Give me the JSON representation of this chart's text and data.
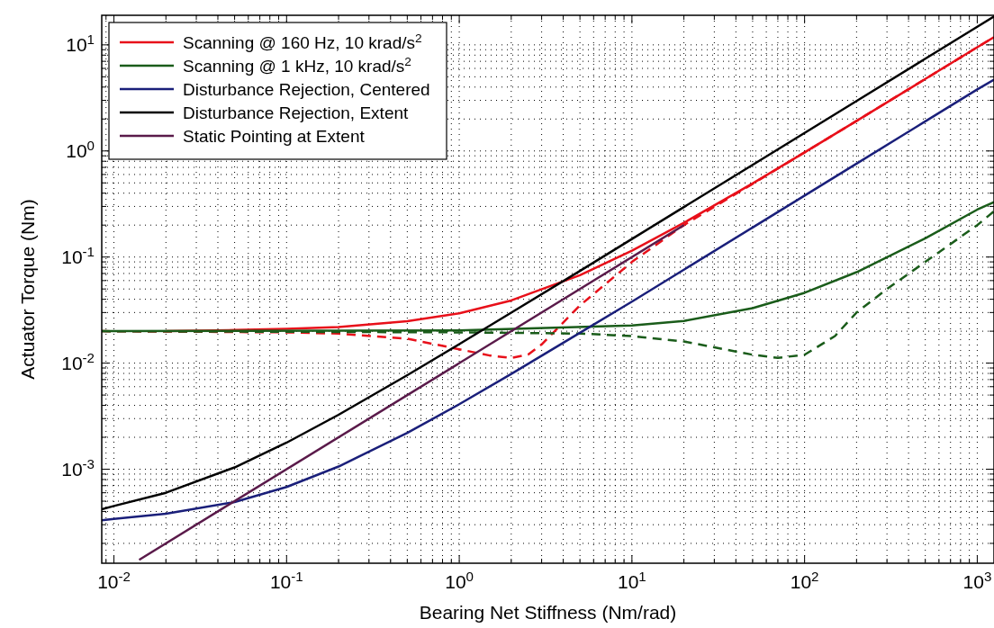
{
  "chart_data": {
    "type": "line",
    "xlabel": "Bearing Net Stiffness (Nm/rad)",
    "ylabel": "Actuator Torque (Nm)",
    "log": "xy",
    "grid": true,
    "legend": "top left",
    "xlim": [
      0.0085,
      1250
    ],
    "ylim": [
      0.00013,
      19
    ],
    "xticks": [
      {
        "value": 0.009,
        "label": null
      },
      {
        "value": 0.01,
        "label": "10$^{-2}$"
      },
      {
        "value": 0.02,
        "label": null
      },
      {
        "value": 0.03,
        "label": null
      },
      {
        "value": 0.04,
        "label": null
      },
      {
        "value": 0.05,
        "label": null
      },
      {
        "value": 0.06,
        "label": null
      },
      {
        "value": 0.07,
        "label": null
      },
      {
        "value": 0.08,
        "label": null
      },
      {
        "value": 0.09,
        "label": null
      },
      {
        "value": 0.1,
        "label": "10$^{-1}$"
      },
      {
        "value": 0.2,
        "label": null
      },
      {
        "value": 0.3,
        "label": null
      },
      {
        "value": 0.4,
        "label": null
      },
      {
        "value": 0.5,
        "label": null
      },
      {
        "value": 0.6,
        "label": null
      },
      {
        "value": 0.7,
        "label": null
      },
      {
        "value": 0.8,
        "label": null
      },
      {
        "value": 0.9,
        "label": null
      },
      {
        "value": 1,
        "label": "10$^{0}$"
      },
      {
        "value": 2,
        "label": null
      },
      {
        "value": 3,
        "label": null
      },
      {
        "value": 4,
        "label": null
      },
      {
        "value": 5,
        "label": null
      },
      {
        "value": 6,
        "label": null
      },
      {
        "value": 7,
        "label": null
      },
      {
        "value": 8,
        "label": null
      },
      {
        "value": 9,
        "label": null
      },
      {
        "value": 10,
        "label": "10$^{1}$"
      },
      {
        "value": 20,
        "label": null
      },
      {
        "value": 30,
        "label": null
      },
      {
        "value": 40,
        "label": null
      },
      {
        "value": 50,
        "label": null
      },
      {
        "value": 60,
        "label": null
      },
      {
        "value": 70,
        "label": null
      },
      {
        "value": 80,
        "label": null
      },
      {
        "value": 90,
        "label": null
      },
      {
        "value": 100,
        "label": "10$^{2}$"
      },
      {
        "value": 200,
        "label": null
      },
      {
        "value": 300,
        "label": null
      },
      {
        "value": 400,
        "label": null
      },
      {
        "value": 500,
        "label": null
      },
      {
        "value": 600,
        "label": null
      },
      {
        "value": 700,
        "label": null
      },
      {
        "value": 800,
        "label": null
      },
      {
        "value": 900,
        "label": null
      },
      {
        "value": 1000,
        "label": "10$^{3}$"
      }
    ],
    "yticks": [
      {
        "value": 0.0002,
        "label": null
      },
      {
        "value": 0.0003,
        "label": null
      },
      {
        "value": 0.0004,
        "label": null
      },
      {
        "value": 0.0005,
        "label": null
      },
      {
        "value": 0.0006,
        "label": null
      },
      {
        "value": 0.0007,
        "label": null
      },
      {
        "value": 0.0008,
        "label": null
      },
      {
        "value": 0.0009,
        "label": null
      },
      {
        "value": 0.001,
        "label": "10$^{-3}$"
      },
      {
        "value": 0.002,
        "label": null
      },
      {
        "value": 0.003,
        "label": null
      },
      {
        "value": 0.004,
        "label": null
      },
      {
        "value": 0.005,
        "label": null
      },
      {
        "value": 0.006,
        "label": null
      },
      {
        "value": 0.007,
        "label": null
      },
      {
        "value": 0.008,
        "label": null
      },
      {
        "value": 0.009,
        "label": null
      },
      {
        "value": 0.01,
        "label": "10$^{-2}$"
      },
      {
        "value": 0.02,
        "label": null
      },
      {
        "value": 0.03,
        "label": null
      },
      {
        "value": 0.04,
        "label": null
      },
      {
        "value": 0.05,
        "label": null
      },
      {
        "value": 0.06,
        "label": null
      },
      {
        "value": 0.07,
        "label": null
      },
      {
        "value": 0.08,
        "label": null
      },
      {
        "value": 0.09,
        "label": null
      },
      {
        "value": 0.1,
        "label": "10$^{-1}$"
      },
      {
        "value": 0.2,
        "label": null
      },
      {
        "value": 0.3,
        "label": null
      },
      {
        "value": 0.4,
        "label": null
      },
      {
        "value": 0.5,
        "label": null
      },
      {
        "value": 0.6,
        "label": null
      },
      {
        "value": 0.7,
        "label": null
      },
      {
        "value": 0.8,
        "label": null
      },
      {
        "value": 0.9,
        "label": null
      },
      {
        "value": 1,
        "label": "10$^{0}$"
      },
      {
        "value": 2,
        "label": null
      },
      {
        "value": 3,
        "label": null
      },
      {
        "value": 4,
        "label": null
      },
      {
        "value": 5,
        "label": null
      },
      {
        "value": 6,
        "label": null
      },
      {
        "value": 7,
        "label": null
      },
      {
        "value": 8,
        "label": null
      },
      {
        "value": 9,
        "label": null
      },
      {
        "value": 10,
        "label": "10$^{1}$"
      }
    ],
    "series": [
      {
        "name": "Scanning @ 160 Hz, 10 krad/s$^{2}$",
        "color": "#e8101a",
        "x": [
          0.02,
          0.05,
          0.1,
          0.2,
          0.5,
          1,
          2,
          5,
          10,
          20,
          50,
          100,
          200,
          500,
          1000,
          1250
        ],
        "values": [
          0.02,
          0.0205,
          0.021,
          0.0219,
          0.0248,
          0.0295,
          0.039,
          0.0675,
          0.115,
          0.21,
          0.495,
          0.97,
          1.92,
          4.77,
          9.5,
          11.8
        ]
      },
      {
        "color": "#e8101a",
        "line_style": "dashed",
        "x": [
          0.0085,
          0.1,
          0.2,
          0.5,
          1,
          1.5,
          2,
          2.5,
          3,
          5,
          10,
          20,
          50,
          100,
          200,
          500,
          1000,
          1250
        ],
        "values": [
          0.02,
          0.0195,
          0.019,
          0.017,
          0.0135,
          0.0118,
          0.0112,
          0.012,
          0.015,
          0.035,
          0.09,
          0.2,
          0.49,
          0.97,
          1.92,
          4.77,
          9.5,
          11.8
        ]
      },
      {
        "name": "Scanning @ 1 kHz, 10 krad/s$^{2}$",
        "color": "#1a5c1a",
        "x": [
          0.0085,
          1,
          10,
          20,
          50,
          100,
          200,
          500,
          1000,
          1250
        ],
        "values": [
          0.02,
          0.0203,
          0.0226,
          0.025,
          0.033,
          0.046,
          0.072,
          0.15,
          0.28,
          0.33
        ]
      },
      {
        "color": "#1a5c1a",
        "line_style": "dashed",
        "x": [
          0.0085,
          1,
          5,
          10,
          20,
          50,
          70,
          100,
          150,
          200,
          300,
          500,
          1000,
          1250
        ],
        "values": [
          0.02,
          0.0195,
          0.019,
          0.018,
          0.016,
          0.012,
          0.0112,
          0.012,
          0.018,
          0.03,
          0.05,
          0.09,
          0.2,
          0.27
        ]
      },
      {
        "name": "Disturbance Rejection, Centered",
        "color": "#1a1f7a",
        "x": [
          0.0085,
          0.01,
          0.02,
          0.05,
          0.1,
          0.2,
          0.5,
          1,
          2,
          5,
          10,
          20,
          50,
          100,
          200,
          500,
          1000,
          1250
        ],
        "values": [
          0.00033,
          0.00034,
          0.00038,
          0.00049,
          0.00068,
          0.00106,
          0.0022,
          0.0041,
          0.0079,
          0.0193,
          0.038,
          0.076,
          0.19,
          0.38,
          0.76,
          1.9,
          3.8,
          4.7
        ]
      },
      {
        "name": "Disturbance Rejection, Extent",
        "color": "#000000",
        "x": [
          0.0085,
          0.01,
          0.02,
          0.05,
          0.1,
          0.2,
          0.5,
          1,
          2,
          5,
          10,
          20,
          50,
          100,
          200,
          500,
          1000,
          1250
        ],
        "values": [
          0.00042,
          0.00045,
          0.0006,
          0.00104,
          0.00178,
          0.00326,
          0.0077,
          0.0151,
          0.0299,
          0.074,
          0.148,
          0.296,
          0.74,
          1.48,
          2.96,
          7.4,
          14.8,
          18.5
        ]
      },
      {
        "name": "Static Pointing at Extent",
        "color": "#5a1a4a",
        "x": [
          0.014,
          20
        ],
        "values": [
          0.00014,
          0.2
        ]
      }
    ]
  }
}
